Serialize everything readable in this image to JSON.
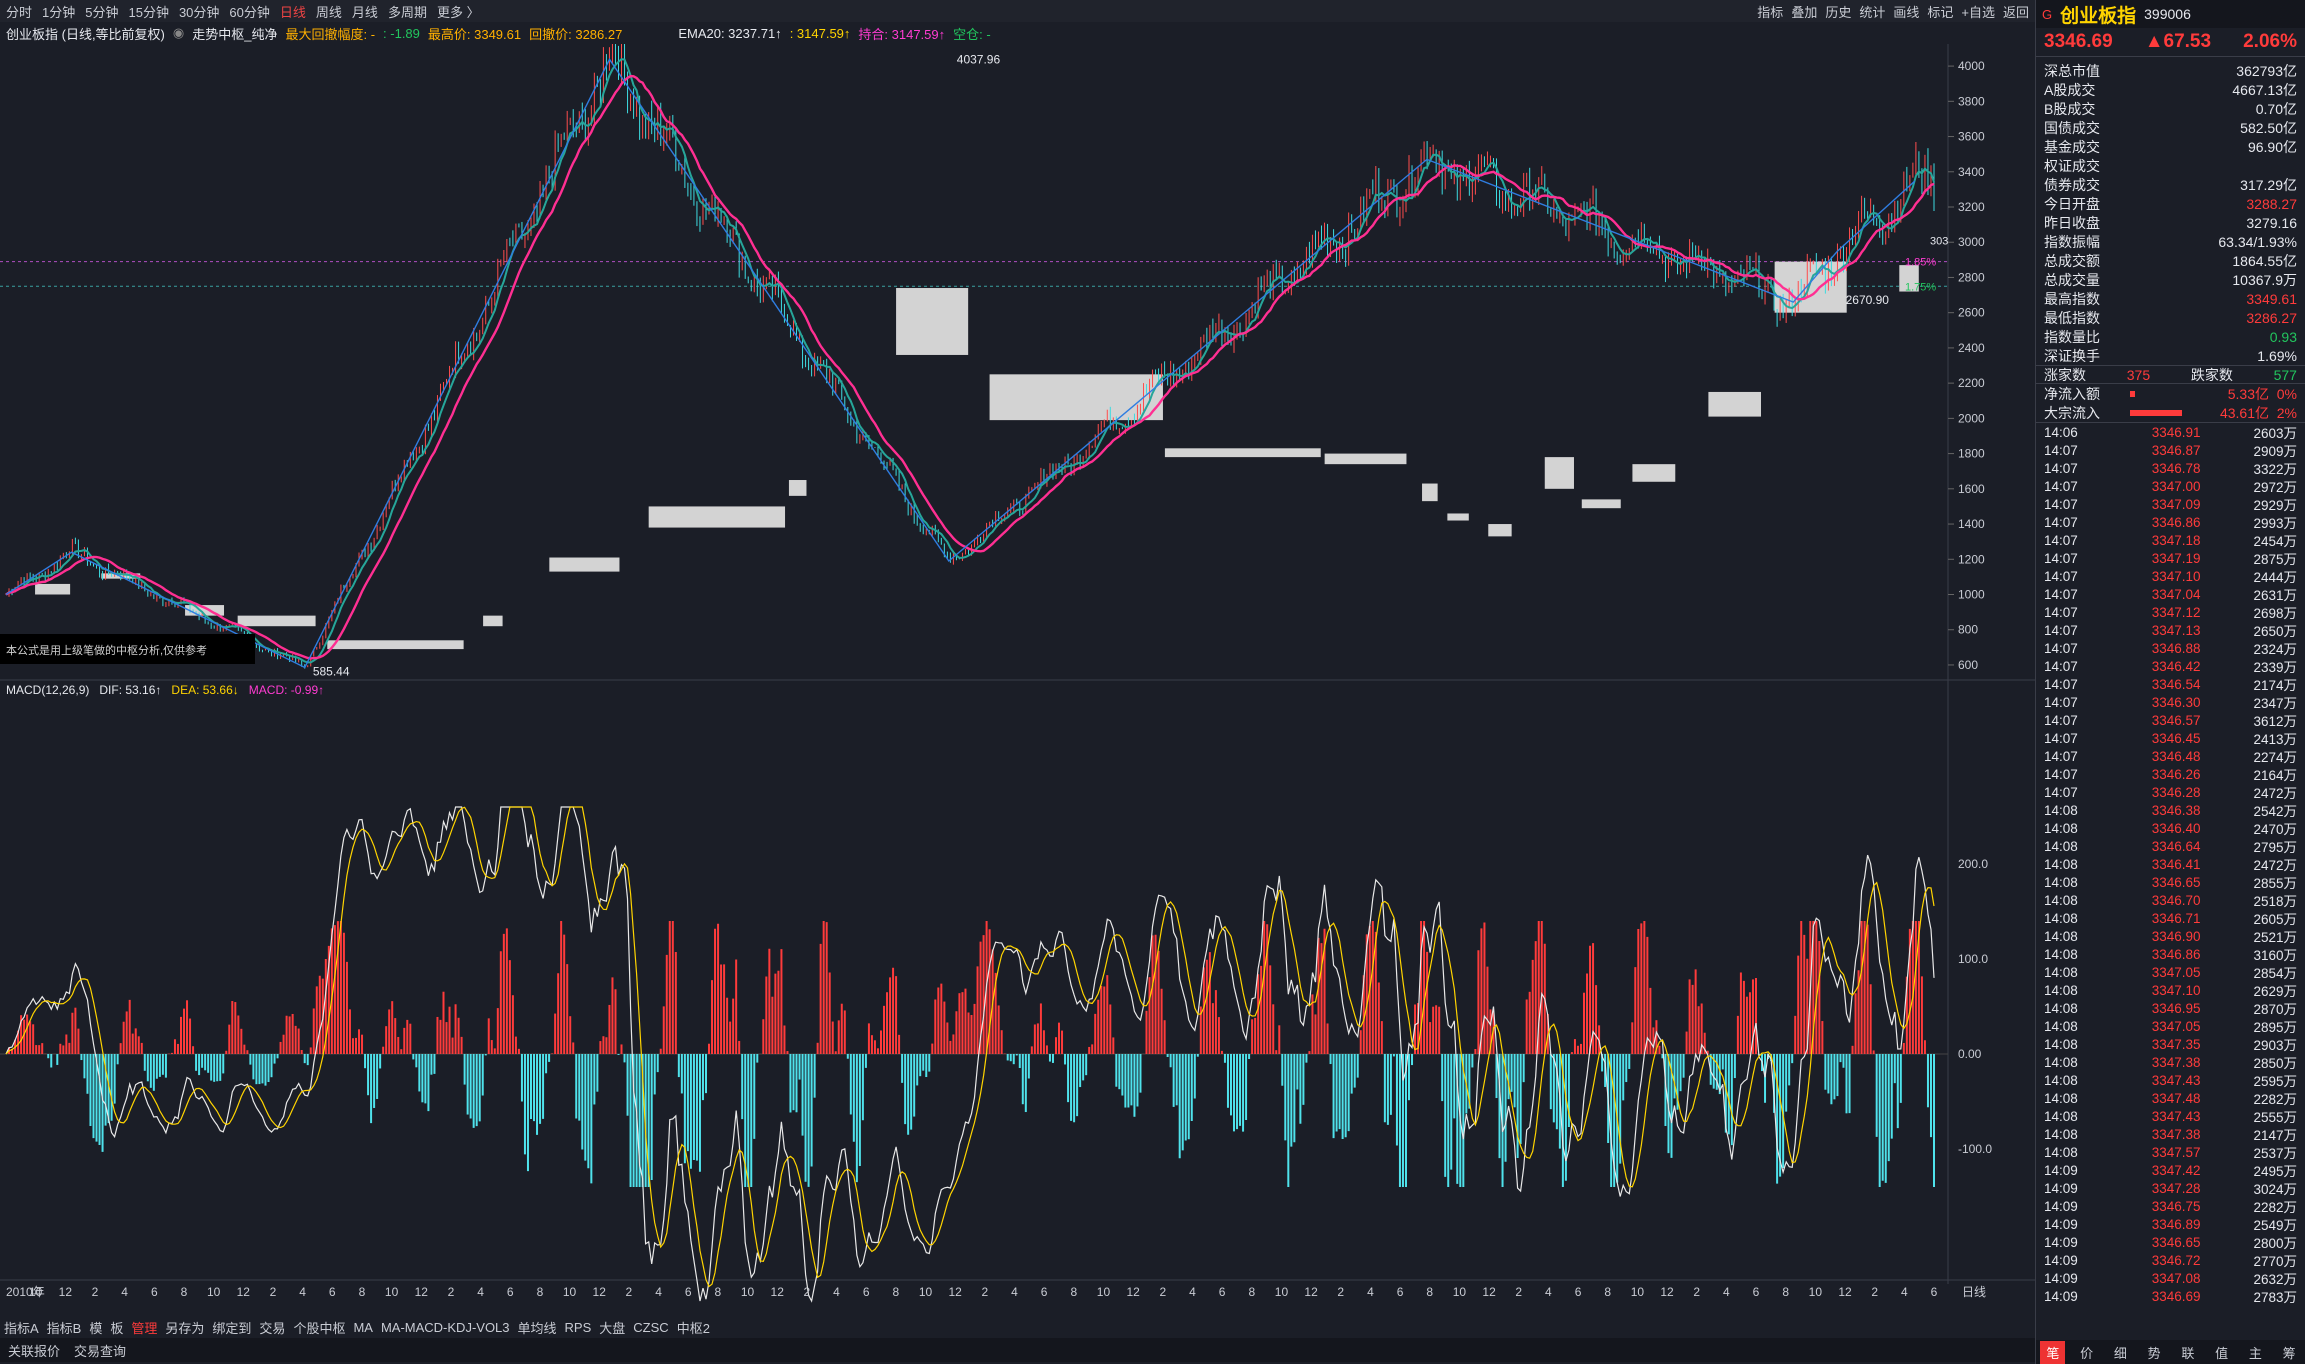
{
  "topbar": {
    "periods": [
      "分时",
      "1分钟",
      "5分钟",
      "15分钟",
      "30分钟",
      "60分钟",
      "日线",
      "周线",
      "月线",
      "多周期",
      "更多 〉"
    ],
    "active": "日线",
    "tools": [
      "指标",
      "叠加",
      "历史",
      "统计",
      "画线",
      "标记",
      "+自选",
      "返回"
    ]
  },
  "infobar": {
    "name": "创业板指 (日线,等比前复权)",
    "indicator": "走势中枢_纯净",
    "maxdd_label": "最大回撤幅度: -",
    "maxdd_value": ": -1.89",
    "high_label": "最高价: 3349.61",
    "low_label": "回撤价: 3286.27",
    "ema": "EMA20: 3237.71↑",
    "colon_val": ": 3147.59↑",
    "mix": "持合: 3147.59↑",
    "empty": "空仓: -"
  },
  "macd_header": {
    "name": "MACD(12,26,9)",
    "dif": "DIF: 53.16↑",
    "dea": "DEA: 53.66↓",
    "macd": "MACD: -0.99↑"
  },
  "note": "本公式是用上级笔做的中枢分析,仅供参考",
  "chart_data": {
    "type": "line",
    "title": "创业板指 (日线,等比前复权)",
    "y_ticks": [
      600.0,
      800.0,
      1000,
      1200,
      1400,
      1600,
      1800,
      2000,
      2200,
      2400,
      2600,
      2800,
      3000,
      3200,
      3400,
      3600,
      3800,
      4000
    ],
    "ylim": [
      585.44,
      4037.96
    ],
    "macd_ticks": [
      200.0,
      100.0,
      0.0,
      -100.0
    ],
    "x_labels": [
      "2010年",
      "10",
      "12",
      "2",
      "4",
      "6",
      "8",
      "10",
      "12",
      "2",
      "4",
      "6",
      "8",
      "10",
      "12",
      "2",
      "4",
      "6",
      "8",
      "10",
      "12",
      "2",
      "4",
      "6",
      "8",
      "10",
      "12",
      "2",
      "4",
      "6",
      "8",
      "10",
      "12",
      "2",
      "4",
      "6",
      "8",
      "10",
      "12",
      "2",
      "4",
      "6",
      "8",
      "10",
      "12",
      "2",
      "4",
      "6",
      "8",
      "10",
      "12",
      "2",
      "4",
      "6",
      "8",
      "10",
      "12",
      "2",
      "4",
      "6",
      "8",
      "10",
      "12",
      "2",
      "4",
      "6"
    ],
    "x_unit": "日线",
    "annotations": [
      "4037.96",
      "585.44",
      "2670.90",
      "1.85%",
      "1.75%",
      "303"
    ],
    "pivots": [
      {
        "label": "start",
        "v": 1100
      },
      {
        "label": "peak",
        "v": 1240
      },
      {
        "label": "low",
        "v": 585.44
      },
      {
        "label": "high",
        "v": 4037.96
      },
      {
        "label": "low",
        "v": 1180
      },
      {
        "label": "high",
        "v": 3470
      },
      {
        "label": "low",
        "v": 2670.9
      },
      {
        "label": "last",
        "v": 3346.69
      }
    ],
    "zhongshu": [
      {
        "x0": 0.018,
        "x1": 0.036,
        "lo": 1000,
        "hi": 1060
      },
      {
        "x0": 0.052,
        "x1": 0.072,
        "lo": 1090,
        "hi": 1120
      },
      {
        "x0": 0.095,
        "x1": 0.115,
        "lo": 880,
        "hi": 940
      },
      {
        "x0": 0.122,
        "x1": 0.162,
        "lo": 820,
        "hi": 880
      },
      {
        "x0": 0.168,
        "x1": 0.238,
        "lo": 690,
        "hi": 740
      },
      {
        "x0": 0.248,
        "x1": 0.258,
        "lo": 820,
        "hi": 880
      },
      {
        "x0": 0.282,
        "x1": 0.318,
        "lo": 1130,
        "hi": 1210
      },
      {
        "x0": 0.333,
        "x1": 0.403,
        "lo": 1380,
        "hi": 1500
      },
      {
        "x0": 0.405,
        "x1": 0.414,
        "lo": 1560,
        "hi": 1650
      },
      {
        "x0": 0.46,
        "x1": 0.497,
        "lo": 2360,
        "hi": 2740
      },
      {
        "x0": 0.508,
        "x1": 0.597,
        "lo": 1990,
        "hi": 2250
      },
      {
        "x0": 0.598,
        "x1": 0.678,
        "lo": 1780,
        "hi": 1830
      },
      {
        "x0": 0.68,
        "x1": 0.722,
        "lo": 1740,
        "hi": 1800
      },
      {
        "x0": 0.73,
        "x1": 0.738,
        "lo": 1530,
        "hi": 1630
      },
      {
        "x0": 0.743,
        "x1": 0.754,
        "lo": 1420,
        "hi": 1460
      },
      {
        "x0": 0.764,
        "x1": 0.776,
        "lo": 1330,
        "hi": 1400
      },
      {
        "x0": 0.793,
        "x1": 0.808,
        "lo": 1600,
        "hi": 1780
      },
      {
        "x0": 0.812,
        "x1": 0.832,
        "lo": 1490,
        "hi": 1540
      },
      {
        "x0": 0.838,
        "x1": 0.86,
        "lo": 1640,
        "hi": 1740
      },
      {
        "x0": 0.877,
        "x1": 0.904,
        "lo": 2010,
        "hi": 2150
      },
      {
        "x0": 0.911,
        "x1": 0.948,
        "lo": 2600,
        "hi": 2890
      },
      {
        "x0": 0.975,
        "x1": 0.985,
        "lo": 2720,
        "hi": 2870
      }
    ]
  },
  "right": {
    "code_prefix": "G",
    "name": "创业板指",
    "code": "399006",
    "price": "3346.69",
    "change": "▲67.53",
    "pct": "2.06%",
    "rows": [
      {
        "k": "深总市值",
        "v": "362793亿",
        "c": "white"
      },
      {
        "k": "A股成交",
        "v": "4667.13亿",
        "c": "white"
      },
      {
        "k": "B股成交",
        "v": "0.70亿",
        "c": "white"
      },
      {
        "k": "国债成交",
        "v": "582.50亿",
        "c": "white"
      },
      {
        "k": "基金成交",
        "v": "96.90亿",
        "c": "white"
      },
      {
        "k": "权证成交",
        "v": "",
        "c": "white"
      },
      {
        "k": "债券成交",
        "v": "317.29亿",
        "c": "white"
      },
      {
        "k": "今日开盘",
        "v": "3288.27",
        "c": "red"
      },
      {
        "k": "昨日收盘",
        "v": "3279.16",
        "c": "white"
      },
      {
        "k": "指数振幅",
        "v": "63.34/1.93%",
        "c": "white"
      },
      {
        "k": "总成交额",
        "v": "1864.55亿",
        "c": "white"
      },
      {
        "k": "总成交量",
        "v": "10367.9万",
        "c": "white"
      },
      {
        "k": "最高指数",
        "v": "3349.61",
        "c": "red"
      },
      {
        "k": "最低指数",
        "v": "3286.27",
        "c": "red"
      },
      {
        "k": "指数量比",
        "v": "0.93",
        "c": "green"
      },
      {
        "k": "深证换手",
        "v": "1.69%",
        "c": "white"
      }
    ],
    "updown": {
      "up_label": "涨家数",
      "up": "375",
      "down_label": "跌家数",
      "down": "577"
    },
    "flows": [
      {
        "k": "净流入额",
        "v": "5.33亿",
        "p": "0%",
        "bar": 0.05
      },
      {
        "k": "大宗流入",
        "v": "43.61亿",
        "p": "2%",
        "bar": 0.62
      }
    ],
    "ticks": [
      [
        "14:06",
        "3346.91",
        "2603万"
      ],
      [
        "14:07",
        "3346.87",
        "2909万"
      ],
      [
        "14:07",
        "3346.78",
        "3322万"
      ],
      [
        "14:07",
        "3347.00",
        "2972万"
      ],
      [
        "14:07",
        "3347.09",
        "2929万"
      ],
      [
        "14:07",
        "3346.86",
        "2993万"
      ],
      [
        "14:07",
        "3347.18",
        "2454万"
      ],
      [
        "14:07",
        "3347.19",
        "2875万"
      ],
      [
        "14:07",
        "3347.10",
        "2444万"
      ],
      [
        "14:07",
        "3347.04",
        "2631万"
      ],
      [
        "14:07",
        "3347.12",
        "2698万"
      ],
      [
        "14:07",
        "3347.13",
        "2650万"
      ],
      [
        "14:07",
        "3346.88",
        "2324万"
      ],
      [
        "14:07",
        "3346.42",
        "2339万"
      ],
      [
        "14:07",
        "3346.54",
        "2174万"
      ],
      [
        "14:07",
        "3346.30",
        "2347万"
      ],
      [
        "14:07",
        "3346.57",
        "3612万"
      ],
      [
        "14:07",
        "3346.45",
        "2413万"
      ],
      [
        "14:07",
        "3346.48",
        "2274万"
      ],
      [
        "14:07",
        "3346.26",
        "2164万"
      ],
      [
        "14:07",
        "3346.28",
        "2472万"
      ],
      [
        "14:08",
        "3346.38",
        "2542万"
      ],
      [
        "14:08",
        "3346.40",
        "2470万"
      ],
      [
        "14:08",
        "3346.64",
        "2795万"
      ],
      [
        "14:08",
        "3346.41",
        "2472万"
      ],
      [
        "14:08",
        "3346.65",
        "2855万"
      ],
      [
        "14:08",
        "3346.70",
        "2518万"
      ],
      [
        "14:08",
        "3346.71",
        "2605万"
      ],
      [
        "14:08",
        "3346.90",
        "2521万"
      ],
      [
        "14:08",
        "3346.86",
        "3160万"
      ],
      [
        "14:08",
        "3347.05",
        "2854万"
      ],
      [
        "14:08",
        "3347.10",
        "2629万"
      ],
      [
        "14:08",
        "3346.95",
        "2870万"
      ],
      [
        "14:08",
        "3347.05",
        "2895万"
      ],
      [
        "14:08",
        "3347.35",
        "2903万"
      ],
      [
        "14:08",
        "3347.38",
        "2850万"
      ],
      [
        "14:08",
        "3347.43",
        "2595万"
      ],
      [
        "14:08",
        "3347.48",
        "2282万"
      ],
      [
        "14:08",
        "3347.43",
        "2555万"
      ],
      [
        "14:08",
        "3347.38",
        "2147万"
      ],
      [
        "14:08",
        "3347.57",
        "2537万"
      ],
      [
        "14:09",
        "3347.42",
        "2495万"
      ],
      [
        "14:09",
        "3347.28",
        "3024万"
      ],
      [
        "14:09",
        "3346.75",
        "2282万"
      ],
      [
        "14:09",
        "3346.89",
        "2549万"
      ],
      [
        "14:09",
        "3346.65",
        "2800万"
      ],
      [
        "14:09",
        "3346.72",
        "2770万"
      ],
      [
        "14:09",
        "3347.08",
        "2632万"
      ],
      [
        "14:09",
        "3346.69",
        "2783万"
      ]
    ],
    "tabs": [
      "笔",
      "价",
      "细",
      "势",
      "联",
      "值",
      "主",
      "筹"
    ]
  },
  "bottom": {
    "items": [
      "指标A",
      "指标B",
      "模",
      "板",
      "管理",
      "另存为",
      "绑定到",
      "交易",
      "个股中枢",
      "MA",
      "MA-MACD-KDJ-VOL3",
      "单均线",
      "RPS",
      "大盘",
      "CZSC",
      "中枢2"
    ],
    "items2": [
      "关联报价",
      "交易查询"
    ]
  }
}
